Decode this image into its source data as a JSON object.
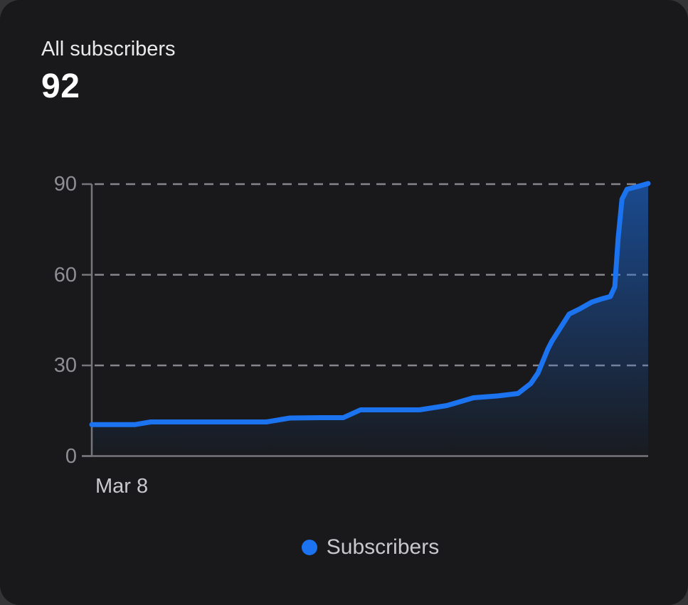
{
  "card": {
    "title": "All subscribers",
    "value": "92"
  },
  "legend": {
    "label": "Subscribers",
    "dot_color": "#1b73f0"
  },
  "chart_data": {
    "type": "area",
    "title": "All subscribers",
    "series": [
      {
        "name": "Subscribers",
        "points": [
          [
            0.0,
            10.4
          ],
          [
            0.077,
            10.4
          ],
          [
            0.106,
            11.3
          ],
          [
            0.314,
            11.3
          ],
          [
            0.356,
            12.6
          ],
          [
            0.41,
            12.7
          ],
          [
            0.452,
            12.7
          ],
          [
            0.483,
            15.3
          ],
          [
            0.589,
            15.3
          ],
          [
            0.638,
            16.7
          ],
          [
            0.686,
            19.3
          ],
          [
            0.73,
            19.9
          ],
          [
            0.766,
            20.7
          ],
          [
            0.789,
            24.0
          ],
          [
            0.802,
            27.5
          ],
          [
            0.82,
            35.5
          ],
          [
            0.827,
            38.0
          ],
          [
            0.858,
            47.0
          ],
          [
            0.878,
            48.8
          ],
          [
            0.899,
            51.0
          ],
          [
            0.916,
            52.0
          ],
          [
            0.932,
            52.8
          ],
          [
            0.94,
            56.0
          ],
          [
            0.946,
            72.0
          ],
          [
            0.953,
            85.0
          ],
          [
            0.962,
            88.3
          ],
          [
            0.981,
            89.2
          ],
          [
            1.0,
            90.2
          ]
        ]
      }
    ],
    "x_tick_labels": [
      "Mar 8"
    ],
    "y_ticks": [
      0,
      30,
      60,
      90
    ],
    "ylim": [
      0,
      90
    ],
    "grid": "dashed-horizontal",
    "legend_position": "bottom-center",
    "line_color": "#1b73f0",
    "area_gradient_top": "rgba(27,115,240,0.55)",
    "area_gradient_bottom": "rgba(27,115,240,0.02)",
    "axis_color": "#77777b",
    "grid_color": "#a0a0a8",
    "y_tick_label_color": "#8e8e93",
    "x_tick_label_color": "#c8c8cd"
  }
}
